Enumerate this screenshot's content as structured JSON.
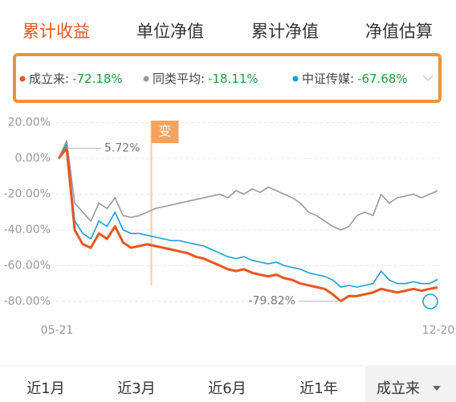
{
  "tabs": [
    "累计收益",
    "单位净值",
    "累计净值",
    "净值估算"
  ],
  "legend_sep": ":",
  "chart_data": {
    "type": "line",
    "categories": [
      "05-21",
      null,
      null,
      null,
      null,
      null,
      null,
      null,
      null,
      null,
      null,
      null,
      null,
      null,
      null,
      null,
      null,
      null,
      null,
      null,
      null,
      null,
      null,
      null,
      null,
      null,
      null,
      null,
      null,
      null,
      null,
      null,
      null,
      null,
      null,
      null,
      null,
      null,
      null,
      null,
      null,
      null,
      null,
      null,
      null,
      null,
      null,
      "12-20"
    ],
    "series": [
      {
        "name": "成立来",
        "color": "#e8561c",
        "current_label": "-72.18%",
        "values": [
          0,
          5.72,
          -40,
          -48,
          -50,
          -42,
          -45,
          -38,
          -47,
          -50,
          -49,
          -48,
          -49,
          -50,
          -51,
          -52,
          -53,
          -55,
          -56,
          -58,
          -60,
          -62,
          -63,
          -62,
          -64,
          -65,
          -66,
          -65,
          -67,
          -68,
          -70,
          -71,
          -72,
          -73,
          -76,
          -79.82,
          -77,
          -77,
          -76,
          -75,
          -73,
          -74,
          -75,
          -74,
          -73,
          -74,
          -73,
          -72.18
        ]
      },
      {
        "name": "同类平均",
        "color": "#9a9a9a",
        "current_label": "-18.11%",
        "values": [
          0,
          10,
          -25,
          -30,
          -35,
          -25,
          -28,
          -22,
          -32,
          -33,
          -32,
          -30,
          -28,
          -27,
          -26,
          -25,
          -24,
          -23,
          -22,
          -21,
          -20,
          -22,
          -18,
          -20,
          -17,
          -19,
          -16,
          -18,
          -20,
          -22,
          -25,
          -30,
          -32,
          -35,
          -38,
          -40,
          -38,
          -32,
          -30,
          -32,
          -20,
          -25,
          -22,
          -21,
          -20,
          -22,
          -20,
          -18.11
        ]
      },
      {
        "name": "中证传媒",
        "color": "#1a9fd8",
        "current_label": "-67.68%",
        "values": [
          0,
          8,
          -35,
          -42,
          -45,
          -35,
          -38,
          -30,
          -40,
          -42,
          -42,
          -43,
          -44,
          -45,
          -46,
          -46,
          -47,
          -48,
          -49,
          -51,
          -53,
          -55,
          -56,
          -55,
          -57,
          -58,
          -59,
          -58,
          -60,
          -61,
          -62,
          -64,
          -65,
          -66,
          -68,
          -72,
          -71,
          -72,
          -71,
          -70,
          -63,
          -68,
          -70,
          -70,
          -69,
          -70,
          -70,
          -67.68
        ]
      }
    ],
    "ylim": [
      -85,
      23
    ],
    "yticks": [
      {
        "value": 20,
        "label": "20.00%"
      },
      {
        "value": 0,
        "label": "0.00%"
      },
      {
        "value": -20,
        "label": "-20.00%"
      },
      {
        "value": -40,
        "label": "-40.00%"
      },
      {
        "value": -60,
        "label": "-60.00%"
      },
      {
        "value": -80,
        "label": "-80.00%"
      }
    ],
    "grid": true,
    "annotations": [
      {
        "text": "5.72%"
      },
      {
        "text": "-79.82%"
      },
      {
        "text": "变"
      }
    ]
  },
  "periods": [
    "近1月",
    "近3月",
    "近6月",
    "近1年",
    "成立来"
  ]
}
